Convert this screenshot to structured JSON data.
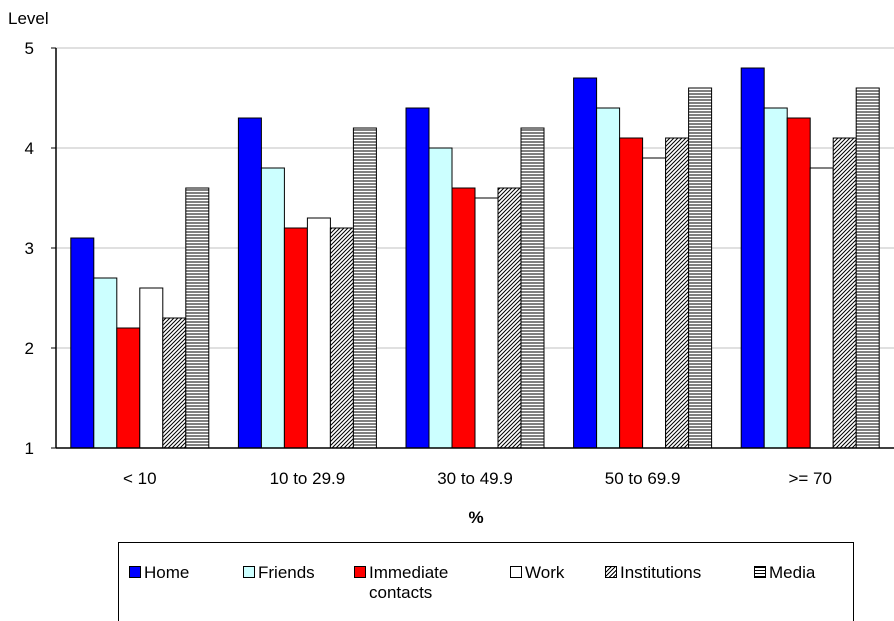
{
  "chart_data": {
    "type": "bar",
    "ylabel": "Level",
    "xlabel": "%",
    "ylim": [
      1,
      5
    ],
    "yticks": [
      "1",
      "2",
      "3",
      "4",
      "5"
    ],
    "grid": true,
    "legend_position": "bottom",
    "categories": [
      "< 10",
      "10 to 29.9",
      "30 to 49.9",
      "50 to 69.9",
      ">= 70"
    ],
    "series": [
      {
        "name": "Home",
        "color": "#0000ff",
        "pattern": "solid",
        "values": [
          3.1,
          4.3,
          4.4,
          4.7,
          4.8
        ]
      },
      {
        "name": "Friends",
        "color": "#ccffff",
        "pattern": "solid",
        "values": [
          2.7,
          3.8,
          4.0,
          4.4,
          4.4
        ]
      },
      {
        "name": "Immediate contacts",
        "color": "#ff0000",
        "pattern": "solid",
        "values": [
          2.2,
          3.2,
          3.6,
          4.1,
          4.3
        ]
      },
      {
        "name": "Work",
        "color": "#ffffff",
        "pattern": "solid",
        "values": [
          2.6,
          3.3,
          3.5,
          3.9,
          3.8
        ]
      },
      {
        "name": "Institutions",
        "color": "#ffffff",
        "pattern": "diagonal",
        "values": [
          2.3,
          3.2,
          3.6,
          4.1,
          4.1
        ]
      },
      {
        "name": "Media",
        "color": "#ffffff",
        "pattern": "horizontal",
        "values": [
          3.6,
          4.2,
          4.2,
          4.6,
          4.6
        ]
      }
    ]
  }
}
